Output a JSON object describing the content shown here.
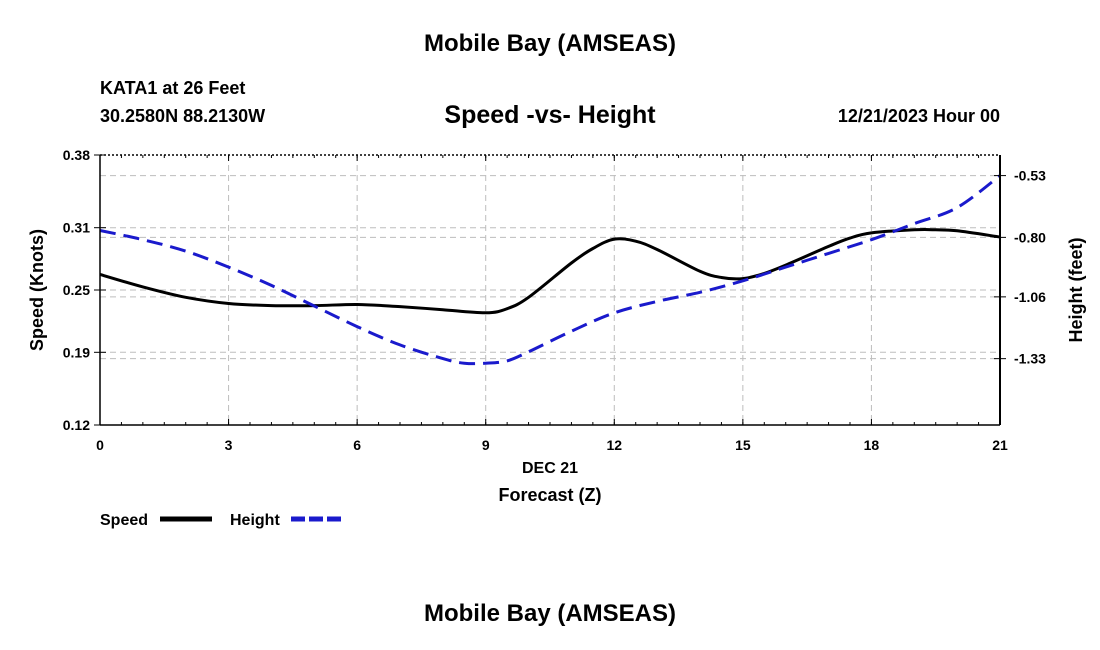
{
  "header": {
    "main_title": "Mobile Bay (AMSEAS)",
    "station": "KATA1 at 26 Feet",
    "coordinates": "30.2580N  88.2130W",
    "subtitle": "Speed -vs- Height",
    "datetime": "12/21/2023 Hour 00"
  },
  "footer": {
    "title": "Mobile Bay (AMSEAS)"
  },
  "chart_data": {
    "type": "line",
    "title": "Speed -vs- Height",
    "xlabel": "Forecast (Z)",
    "xlabel_date": "DEC 21",
    "ylabel": "Speed (Knots)",
    "ylabel_right": "Height (feet)",
    "xlim": [
      0,
      21
    ],
    "ylim": [
      0.12,
      0.38
    ],
    "ylim_right": [
      -1.62,
      -0.44
    ],
    "x_ticks": [
      0,
      3,
      6,
      9,
      12,
      15,
      18,
      21
    ],
    "x_tick_labels": [
      "0",
      "3",
      "6",
      "9",
      "12",
      "15",
      "18",
      "21"
    ],
    "y_ticks": [
      0.12,
      0.19,
      0.25,
      0.31,
      0.38
    ],
    "y_tick_labels": [
      "0.12",
      "0.19",
      "0.25",
      "0.31",
      "0.38"
    ],
    "y_right_ticks": [
      -1.33,
      -1.06,
      -0.8,
      -0.53
    ],
    "y_right_tick_labels": [
      "-1.33",
      "-1.06",
      "-0.80",
      "-0.53"
    ],
    "grid": true,
    "legend": [
      {
        "name": "Speed",
        "color": "#000000",
        "style": "solid"
      },
      {
        "name": "Height",
        "color": "#1a1acc",
        "style": "dashed"
      }
    ],
    "series": [
      {
        "name": "Speed",
        "axis": "left",
        "color": "#000000",
        "style": "solid",
        "x": [
          0,
          1,
          2,
          3,
          4,
          5,
          6,
          7,
          8,
          9,
          9.5,
          10,
          11,
          11.5,
          12,
          12.5,
          13,
          14,
          14.5,
          15,
          15.5,
          16,
          17,
          17.5,
          18,
          19,
          19.5,
          20,
          21
        ],
        "values": [
          0.265,
          0.253,
          0.243,
          0.237,
          0.235,
          0.235,
          0.236,
          0.234,
          0.231,
          0.228,
          0.232,
          0.243,
          0.276,
          0.29,
          0.299,
          0.297,
          0.289,
          0.268,
          0.262,
          0.261,
          0.266,
          0.274,
          0.292,
          0.3,
          0.305,
          0.308,
          0.308,
          0.307,
          0.301
        ]
      },
      {
        "name": "Height",
        "axis": "right",
        "color": "#1a1acc",
        "style": "dashed",
        "x": [
          0,
          1,
          2,
          3,
          4,
          5,
          6,
          7,
          8,
          8.5,
          9,
          9.5,
          10,
          11,
          12,
          13,
          14,
          15,
          16,
          17,
          18,
          19,
          20,
          21
        ],
        "values": [
          -0.77,
          -0.81,
          -0.86,
          -0.93,
          -1.01,
          -1.1,
          -1.19,
          -1.27,
          -1.33,
          -1.35,
          -1.35,
          -1.34,
          -1.3,
          -1.21,
          -1.13,
          -1.08,
          -1.04,
          -0.99,
          -0.93,
          -0.87,
          -0.81,
          -0.74,
          -0.67,
          -0.53
        ]
      }
    ]
  }
}
